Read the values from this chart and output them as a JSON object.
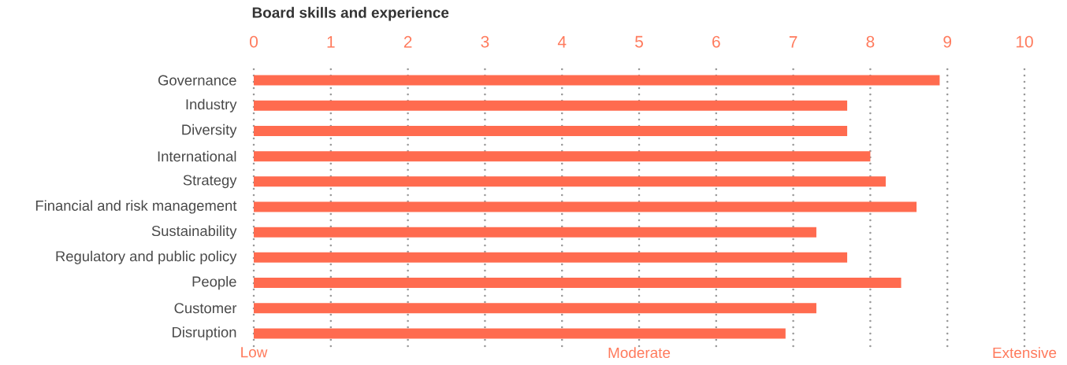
{
  "chart_data": {
    "type": "bar",
    "orientation": "horizontal",
    "title": "Board skills and experience",
    "categories": [
      "Governance",
      "Industry",
      "Diversity",
      "International",
      "Strategy",
      "Financial and risk management",
      "Sustainability",
      "Regulatory and public policy",
      "People",
      "Customer",
      "Disruption"
    ],
    "values": [
      8.9,
      7.7,
      7.7,
      8.0,
      8.2,
      8.6,
      7.3,
      7.7,
      8.4,
      7.3,
      6.9
    ],
    "color": "#ff6b4f",
    "xlim": [
      0,
      10
    ],
    "xticks": [
      0,
      1,
      2,
      3,
      4,
      5,
      6,
      7,
      8,
      9,
      10
    ],
    "annotations": [
      "Low",
      "Moderate",
      "Extensive"
    ],
    "grid": true
  }
}
